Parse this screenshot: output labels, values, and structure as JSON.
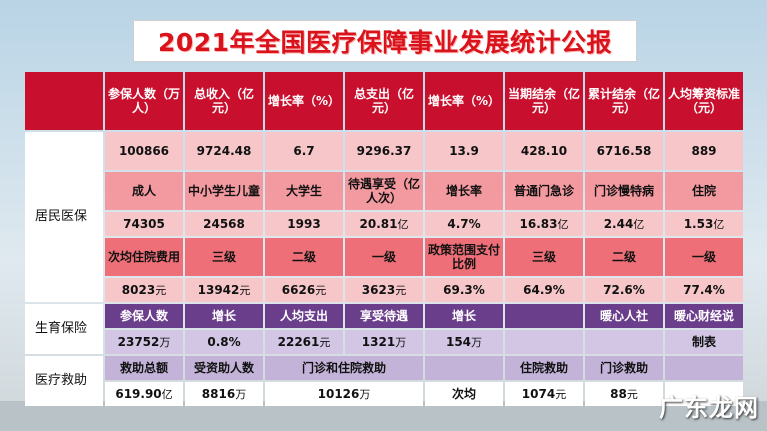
{
  "title": "2021年全国医疗保障事业发展统计公报",
  "header": [
    "参保人数（万人）",
    "总收入（亿元）",
    "增长率（%）",
    "总支出（亿元）",
    "增长率（%）",
    "当期结余（亿元）",
    "累计结余（亿元）",
    "人均筹资标准（元）"
  ],
  "categories": {
    "resident": "居民医保",
    "maternity": "生育保险",
    "assistance": "医疗救助"
  },
  "r1": [
    "100866",
    "9724.48",
    "6.7",
    "9296.37",
    "13.9",
    "428.10",
    "6716.58",
    "889"
  ],
  "r2": [
    "成人",
    "中小学生儿童",
    "大学生",
    "待遇享受（亿人次）",
    "增长率",
    "普通门急诊",
    "门诊慢特病",
    "住院"
  ],
  "r3": [
    {
      "v": "74305",
      "u": ""
    },
    {
      "v": "24568",
      "u": ""
    },
    {
      "v": "1993",
      "u": ""
    },
    {
      "v": "20.81",
      "u": "亿"
    },
    {
      "v": "4.7%",
      "u": ""
    },
    {
      "v": "16.83",
      "u": "亿"
    },
    {
      "v": "2.44",
      "u": "亿"
    },
    {
      "v": "1.53",
      "u": "亿"
    }
  ],
  "r4": [
    "次均住院费用",
    "三级",
    "二级",
    "一级",
    "政策范围支付比例",
    "三级",
    "二级",
    "一级"
  ],
  "r5": [
    {
      "v": "8023",
      "u": "元"
    },
    {
      "v": "13942",
      "u": "元"
    },
    {
      "v": "6626",
      "u": "元"
    },
    {
      "v": "3623",
      "u": "元"
    },
    {
      "v": "69.3%",
      "u": ""
    },
    {
      "v": "64.9%",
      "u": ""
    },
    {
      "v": "72.6%",
      "u": ""
    },
    {
      "v": "77.4%",
      "u": ""
    }
  ],
  "m1": [
    "参保人数",
    "增长",
    "人均支出",
    "享受待遇",
    "增长",
    "",
    "暖心人社",
    "暖心财经说"
  ],
  "m2": [
    {
      "v": "23752",
      "u": "万"
    },
    {
      "v": "0.8%",
      "u": ""
    },
    {
      "v": "22261",
      "u": "元"
    },
    {
      "v": "1321",
      "u": "万"
    },
    {
      "v": "154",
      "u": "万"
    },
    {
      "v": "",
      "u": ""
    },
    {
      "v": "",
      "u": ""
    },
    {
      "v": "制表",
      "u": ""
    }
  ],
  "a1": {
    "c1": "救助总额",
    "c2": "受资助人数",
    "c3": "门诊和住院救助",
    "c5": "",
    "c6": "住院救助",
    "c7": "门诊救助",
    "c8": ""
  },
  "a2": {
    "c1": {
      "v": "619.90",
      "u": "亿"
    },
    "c2": {
      "v": "8816",
      "u": "万"
    },
    "c3": {
      "v": "10126",
      "u": "万"
    },
    "c5": "次均",
    "c6": {
      "v": "1074",
      "u": "元"
    },
    "c7": {
      "v": "88",
      "u": "元"
    },
    "c8": ""
  },
  "watermark": "广东龙网",
  "colors": {
    "header": "#c8102e",
    "title": "#d9131b",
    "maternity": "#6b3e8c"
  }
}
